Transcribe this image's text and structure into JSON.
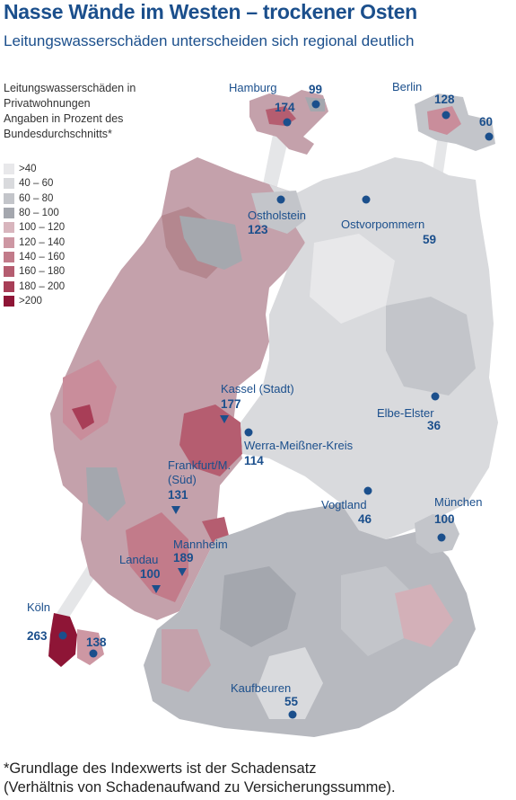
{
  "title": "Nasse Wände im Westen – trockener Osten",
  "subtitle": "Leitungswasserschäden unterscheiden sich regional deutlich",
  "legend": {
    "title_lines": [
      "Leitungswasserschäden in",
      "Privatwohnungen",
      "Angaben in Prozent des",
      "Bundesdurchschnitts*"
    ],
    "items": [
      {
        "label": ">40",
        "color": "#e8e8ea"
      },
      {
        "label": "40 – 60",
        "color": "#d9dadd"
      },
      {
        "label": "60 – 80",
        "color": "#c3c5ca"
      },
      {
        "label": "80 – 100",
        "color": "#a4a7ae"
      },
      {
        "label": "100 – 120",
        "color": "#d8b5bd"
      },
      {
        "label": "120 – 140",
        "color": "#cd97a3"
      },
      {
        "label": "140 – 160",
        "color": "#c27b8a"
      },
      {
        "label": "160 – 180",
        "color": "#b55d70"
      },
      {
        "label": "180 – 200",
        "color": "#a83e57"
      },
      {
        "label": ">200",
        "color": "#8e1536"
      }
    ]
  },
  "regions": [
    {
      "name": "Hamburg",
      "value": "174",
      "inset": true
    },
    {
      "name": "",
      "value": "99",
      "inset": true
    },
    {
      "name": "Berlin",
      "value": "128",
      "inset": true
    },
    {
      "name": "",
      "value": "60",
      "inset": true
    },
    {
      "name": "Ostholstein",
      "value": "123"
    },
    {
      "name": "Ostvorpommern",
      "value": "59"
    },
    {
      "name": "Kassel (Stadt)",
      "value": "177"
    },
    {
      "name": "Werra-Meißner-Kreis",
      "value": "114"
    },
    {
      "name": "Elbe-Elster",
      "value": "36"
    },
    {
      "name": "Frankfurt/M. (Süd)",
      "value": "131"
    },
    {
      "name": "Vogtland",
      "value": "46"
    },
    {
      "name": "München",
      "value": "100",
      "inset": true
    },
    {
      "name": "Mannheim",
      "value": "189"
    },
    {
      "name": "Landau",
      "value": "100"
    },
    {
      "name": "Köln",
      "value": "263",
      "inset": true
    },
    {
      "name": "",
      "value": "138",
      "inset": true
    },
    {
      "name": "Kaufbeuren",
      "value": "55"
    }
  ],
  "colors": {
    "label_blue": "#1b4f8c",
    "ring_light": "#e3e4e6"
  },
  "footnote_lines": [
    "*Grundlage des Indexwerts ist der Schadensatz",
    "(Verhältnis von Schadenaufwand zu Versicherungssumme)."
  ]
}
